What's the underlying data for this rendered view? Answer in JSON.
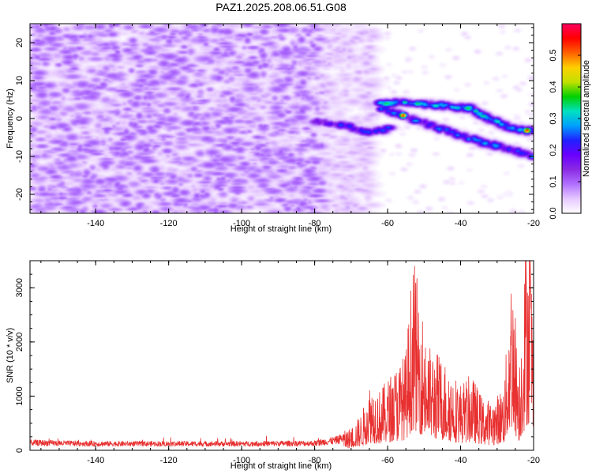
{
  "title": "PAZ1.2025.208.06.51.G08",
  "colors": {
    "snr_line": "#e83030",
    "colormap": [
      "#ffffff",
      "#e6c8ff",
      "#b070ff",
      "#8a2be2",
      "#6a00ff",
      "#2020ff",
      "#00a0ff",
      "#00e0c0",
      "#00d000",
      "#c0e000",
      "#ffd000",
      "#ff6000",
      "#ff0000",
      "#ff0060"
    ]
  },
  "chart_data": [
    {
      "type": "heatmap",
      "xlabel": "Height of straight line (km)",
      "ylabel": "Frequency (Hz)",
      "xlim": [
        -158,
        -20
      ],
      "ylim": [
        -25,
        25
      ],
      "x_ticks": [
        "-140",
        "-120",
        "-100",
        "-80",
        "-60",
        "-40",
        "-20"
      ],
      "x_tick_values": [
        -140,
        -120,
        -100,
        -80,
        -60,
        -40,
        -20
      ],
      "y_ticks": [
        "-20",
        "-10",
        "0",
        "10",
        "20"
      ],
      "y_tick_values": [
        -20,
        -10,
        0,
        10,
        20
      ],
      "colorbar": {
        "label": "Normalized spectral amplitude",
        "range": [
          0,
          0.6
        ],
        "ticks": [
          "0.0",
          "0.1",
          "0.2",
          "0.3",
          "0.4",
          "0.5"
        ],
        "tick_values": [
          0,
          0.1,
          0.2,
          0.3,
          0.4,
          0.5
        ]
      },
      "noise_region": {
        "x_range": [
          -158,
          -70
        ],
        "typical_amplitude": 0.08
      },
      "ridges": [
        {
          "x": [
            -80,
            -72,
            -66,
            -60
          ],
          "y": [
            -0.5,
            -1.5,
            -3.5,
            -2.5
          ],
          "amplitude": 0.22
        },
        {
          "x": [
            -62,
            -56,
            -50,
            -44,
            -38,
            -32,
            -26,
            -20
          ],
          "y": [
            3,
            1,
            -1,
            -3,
            -5,
            -6.5,
            -8,
            -10
          ],
          "amplitude": 0.25
        },
        {
          "x": [
            -62,
            -56,
            -50,
            -44,
            -38,
            -32,
            -26,
            -20
          ],
          "y": [
            4,
            4.5,
            4,
            3.5,
            3,
            0,
            -2.5,
            -3
          ],
          "amplitude": 0.3
        },
        {
          "x": [
            -56
          ],
          "y": [
            1
          ],
          "amplitude": 0.55
        },
        {
          "x": [
            -22
          ],
          "y": [
            -3
          ],
          "amplitude": 0.55
        }
      ]
    },
    {
      "type": "line",
      "xlabel": "Height of straight line (km)",
      "ylabel": "SNR (10 * v/v)",
      "xlim": [
        -158,
        -20
      ],
      "ylim": [
        0,
        3500
      ],
      "x_ticks": [
        "-140",
        "-120",
        "-100",
        "-80",
        "-60",
        "-40",
        "-20"
      ],
      "x_tick_values": [
        -140,
        -120,
        -100,
        -80,
        -60,
        -40,
        -20
      ],
      "y_ticks": [
        "0",
        "1000",
        "2000",
        "3000"
      ],
      "y_tick_values": [
        0,
        1000,
        2000,
        3000
      ],
      "profile": {
        "x": [
          -158,
          -140,
          -120,
          -100,
          -80,
          -74,
          -70,
          -67,
          -65,
          -62,
          -58,
          -55,
          -53,
          -51,
          -49,
          -46,
          -43,
          -40,
          -37,
          -34,
          -31,
          -28,
          -26,
          -24,
          -22,
          -21,
          -20
        ],
        "y": [
          150,
          130,
          130,
          130,
          140,
          200,
          300,
          500,
          900,
          800,
          1100,
          1300,
          2600,
          2000,
          1400,
          1300,
          1100,
          900,
          1000,
          700,
          650,
          900,
          2600,
          1100,
          2900,
          3400,
          1300
        ]
      }
    }
  ]
}
